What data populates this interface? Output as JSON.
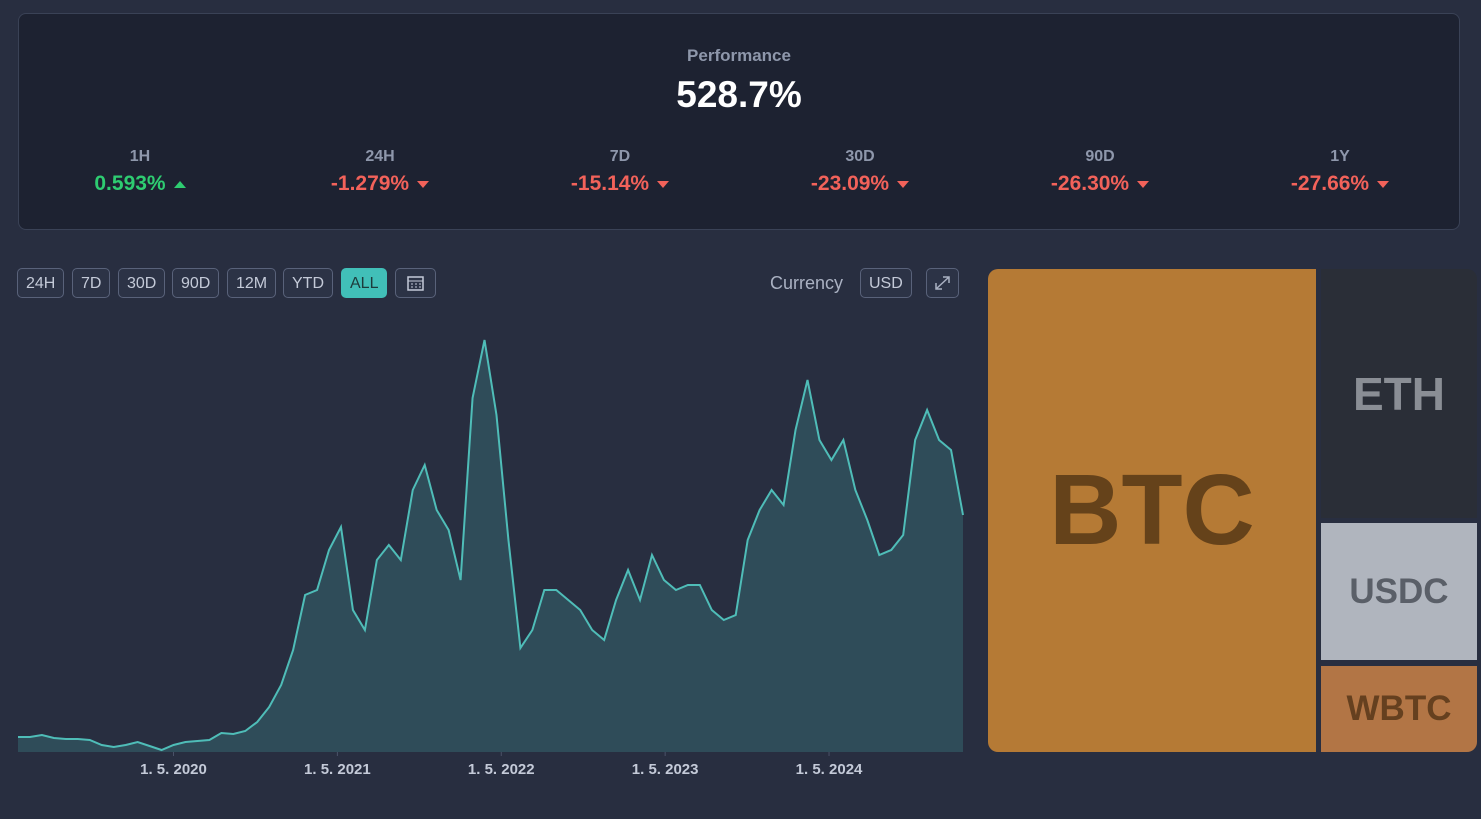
{
  "performance": {
    "label": "Performance",
    "value": "528.7%",
    "periods": [
      {
        "name": "1H",
        "change": "0.593%",
        "trend": "up"
      },
      {
        "name": "24H",
        "change": "-1.279%",
        "trend": "down"
      },
      {
        "name": "7D",
        "change": "-15.14%",
        "trend": "down"
      },
      {
        "name": "30D",
        "change": "-23.09%",
        "trend": "down"
      },
      {
        "name": "90D",
        "change": "-26.30%",
        "trend": "down"
      },
      {
        "name": "1Y",
        "change": "-27.66%",
        "trend": "down"
      }
    ]
  },
  "toolbar": {
    "ranges": [
      "24H",
      "7D",
      "30D",
      "90D",
      "12M",
      "YTD",
      "ALL"
    ],
    "active": "ALL",
    "currency_label": "Currency",
    "currency": "USD"
  },
  "chart_data": {
    "type": "area",
    "color": "#4fbdb8",
    "values": [
      15,
      15,
      17,
      14,
      13,
      13,
      12,
      7,
      5,
      7,
      10,
      6,
      2,
      7,
      10,
      11,
      12,
      19,
      18,
      21,
      30,
      45,
      67,
      102,
      157,
      162,
      202,
      225,
      142,
      122,
      192,
      207,
      192,
      262,
      287,
      242,
      222,
      172,
      354,
      412,
      337,
      212,
      104,
      122,
      162,
      162,
      152,
      142,
      122,
      112,
      152,
      182,
      152,
      197,
      172,
      162,
      167,
      167,
      142,
      132,
      137,
      212,
      242,
      262,
      247,
      322,
      372,
      312,
      292,
      312,
      262,
      232,
      197,
      202,
      217,
      312,
      342,
      312,
      302,
      237
    ],
    "xlim": [
      0,
      79
    ],
    "ylim": [
      0,
      450
    ],
    "xticks": [
      {
        "value": 13.0,
        "label": "1. 5. 2020"
      },
      {
        "value": 26.7,
        "label": "1. 5. 2021"
      },
      {
        "value": 40.4,
        "label": "1. 5. 2022"
      },
      {
        "value": 54.1,
        "label": "1. 5. 2023"
      },
      {
        "value": 67.8,
        "label": "1. 5. 2024"
      }
    ]
  },
  "allocation": [
    "BTC",
    "ETH",
    "USDC",
    "WBTC"
  ]
}
